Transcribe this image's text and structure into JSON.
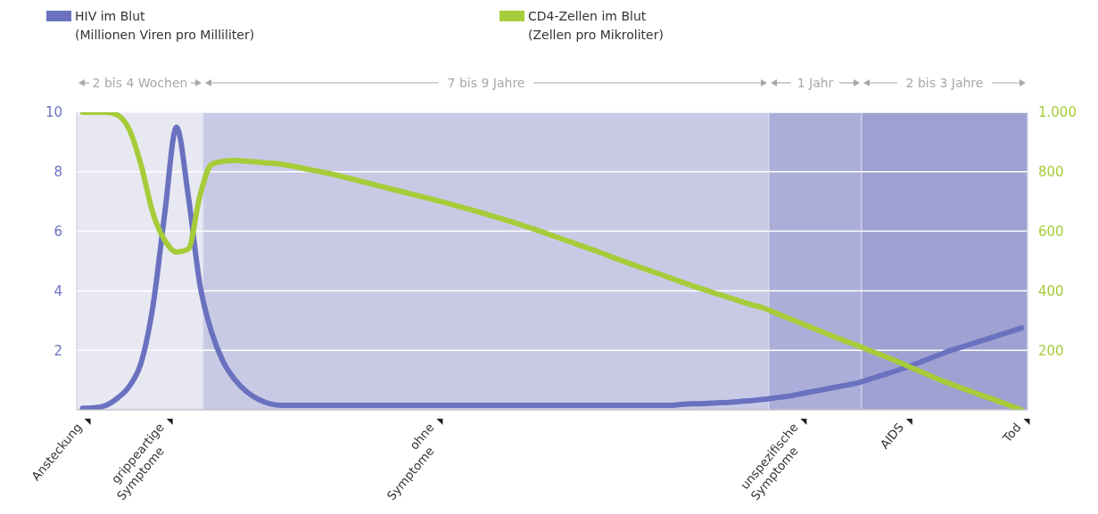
{
  "chart_data": {
    "type": "line",
    "annotations": [
      "(Millionen Viren pro Milliliter)",
      "(Zellen pro Mikroliter)",
      "2 bis 4 Wochen",
      "7 bis 9 Jahre",
      "1 Jahr",
      "2 bis 3 Jahre"
    ],
    "categories": [
      "Ansteckung",
      null,
      null,
      null,
      null,
      null,
      null,
      "grippeartige\nSymptome",
      null,
      null,
      null,
      null,
      null,
      null,
      null,
      null,
      null,
      null,
      null,
      null,
      null,
      null,
      null,
      null,
      null,
      null,
      null,
      null,
      null,
      null,
      "ohne\nSymptome",
      null,
      null,
      null,
      null,
      null,
      null,
      null,
      null,
      null,
      null,
      null,
      null,
      null,
      null,
      null,
      null,
      null,
      null,
      null,
      null,
      null,
      null,
      null,
      null,
      null,
      null,
      null,
      null,
      null,
      null,
      "unspezifische\nSymptome",
      null,
      null,
      null,
      null,
      null,
      null,
      null,
      null,
      "AIDS",
      null,
      null,
      null,
      null,
      null,
      null,
      null,
      null,
      null,
      "Tod"
    ],
    "ylim": [
      0,
      10
    ],
    "yticks": [
      2,
      4,
      6,
      8,
      10
    ],
    "y2lim": [
      0,
      1000
    ],
    "y2ticks": [
      200,
      400,
      600,
      800,
      {
        "value": 1000,
        "label": "1.000"
      }
    ],
    "grid": "y",
    "legend": "top left",
    "marker": "none",
    "line_style": "solid",
    "series": [
      {
        "name": "HIV im Blut",
        "color": "#6a72c0",
        "values": [
          0.05,
          0.07,
          0.15,
          0.4,
          0.8,
          1.6,
          3.5,
          6.6,
          9.5,
          7.2,
          4.2,
          2.6,
          1.6,
          1.0,
          0.6,
          0.35,
          0.2,
          0.15,
          0.15,
          0.15,
          0.15,
          0.15,
          0.15,
          0.15,
          0.15,
          0.15,
          0.15,
          0.15,
          0.15,
          0.15,
          0.15,
          0.15,
          0.15,
          0.15,
          0.15,
          0.15,
          0.15,
          0.15,
          0.15,
          0.15,
          0.15,
          0.15,
          0.15,
          0.15,
          0.15,
          0.15,
          0.15,
          0.15,
          0.15,
          0.15,
          0.15,
          0.18,
          0.2,
          0.21,
          0.23,
          0.25,
          0.28,
          0.31,
          0.35,
          0.4,
          0.45,
          0.52,
          0.6,
          0.67,
          0.75,
          0.82,
          0.9,
          1.02,
          1.15,
          1.27,
          1.4,
          1.55,
          1.7,
          1.85,
          2.0,
          2.12,
          2.25,
          2.37,
          2.5,
          2.62,
          2.75
        ]
      },
      {
        "name": "CD4-Zellen im Blut",
        "color": "#a6cc3a",
        "axis": "y2",
        "values": [
          1000,
          1000,
          1000,
          990,
          940,
          820,
          660,
          570,
          530,
          540,
          720,
          825,
          835,
          838,
          835,
          832,
          829,
          825,
          818,
          810,
          802,
          794,
          785,
          775,
          765,
          755,
          745,
          735,
          725,
          715,
          705,
          695,
          684,
          673,
          662,
          650,
          638,
          626,
          613,
          600,
          586,
          572,
          558,
          544,
          530,
          515,
          500,
          486,
          472,
          458,
          444,
          430,
          416,
          403,
          390,
          378,
          365,
          353,
          342,
          326,
          310,
          294,
          278,
          262,
          246,
          231,
          216,
          200,
          185,
          169,
          152,
          135,
          118,
          101,
          86,
          71,
          57,
          43,
          29,
          14,
          0
        ]
      }
    ]
  }
}
